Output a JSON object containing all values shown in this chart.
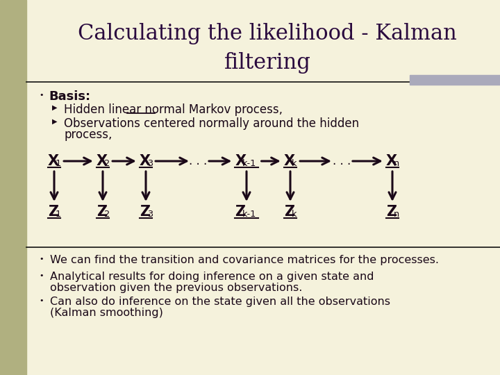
{
  "title_line1": "Calculating the likelihood - Kalman",
  "title_line2": "filtering",
  "bg_color": "#f5f2dc",
  "left_bar_color": "#b0b080",
  "title_color": "#2a0a3e",
  "body_color": "#1a0818",
  "accent_bar_color": "#aaaabb",
  "bullet_main": "Basis:",
  "sub1_full": "Hidden linear normal Markov process,",
  "sub1_pre": "Hidden linear ",
  "sub1_ul": "normal",
  "sub1_post": " Markov process,",
  "sub2_line1": "Observations centered normally around the hidden",
  "sub2_line2": "process,",
  "bullet2": "We can find the transition and covariance matrices for the processes.",
  "bullet3_line1": "Analytical results for doing inference on a given state and",
  "bullet3_line2": "observation given the previous observations.",
  "bullet4_line1": "Can also do inference on the state given all the observations",
  "bullet4_line2": "(Kalman smoothing)",
  "x_nodes": [
    "X",
    "X",
    "X",
    "X",
    "X",
    "X"
  ],
  "x_subs": [
    "1",
    "2",
    "3",
    "k-1",
    "k",
    "n"
  ],
  "z_subs": [
    "1",
    "2",
    "3",
    "k-1",
    "k",
    "n"
  ]
}
